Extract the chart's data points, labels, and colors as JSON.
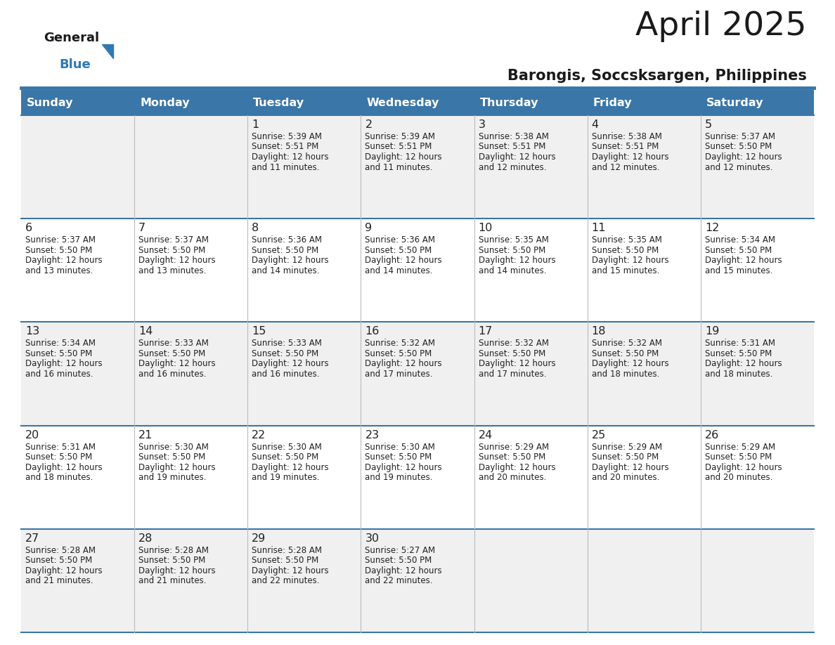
{
  "title": "April 2025",
  "subtitle": "Barongis, Soccsksargen, Philippines",
  "days_of_week": [
    "Sunday",
    "Monday",
    "Tuesday",
    "Wednesday",
    "Thursday",
    "Friday",
    "Saturday"
  ],
  "header_bg": "#3a76a8",
  "header_text": "#ffffff",
  "cell_bg_light": "#f0f0f0",
  "cell_bg_white": "#ffffff",
  "divider_color": "#3a76a8",
  "text_color": "#222222",
  "calendar_data": [
    [
      null,
      null,
      {
        "day": 1,
        "sunrise": "5:39 AM",
        "sunset": "5:51 PM",
        "daylight": "12 hours and 11 minutes."
      },
      {
        "day": 2,
        "sunrise": "5:39 AM",
        "sunset": "5:51 PM",
        "daylight": "12 hours and 11 minutes."
      },
      {
        "day": 3,
        "sunrise": "5:38 AM",
        "sunset": "5:51 PM",
        "daylight": "12 hours and 12 minutes."
      },
      {
        "day": 4,
        "sunrise": "5:38 AM",
        "sunset": "5:51 PM",
        "daylight": "12 hours and 12 minutes."
      },
      {
        "day": 5,
        "sunrise": "5:37 AM",
        "sunset": "5:50 PM",
        "daylight": "12 hours and 12 minutes."
      }
    ],
    [
      {
        "day": 6,
        "sunrise": "5:37 AM",
        "sunset": "5:50 PM",
        "daylight": "12 hours and 13 minutes."
      },
      {
        "day": 7,
        "sunrise": "5:37 AM",
        "sunset": "5:50 PM",
        "daylight": "12 hours and 13 minutes."
      },
      {
        "day": 8,
        "sunrise": "5:36 AM",
        "sunset": "5:50 PM",
        "daylight": "12 hours and 14 minutes."
      },
      {
        "day": 9,
        "sunrise": "5:36 AM",
        "sunset": "5:50 PM",
        "daylight": "12 hours and 14 minutes."
      },
      {
        "day": 10,
        "sunrise": "5:35 AM",
        "sunset": "5:50 PM",
        "daylight": "12 hours and 14 minutes."
      },
      {
        "day": 11,
        "sunrise": "5:35 AM",
        "sunset": "5:50 PM",
        "daylight": "12 hours and 15 minutes."
      },
      {
        "day": 12,
        "sunrise": "5:34 AM",
        "sunset": "5:50 PM",
        "daylight": "12 hours and 15 minutes."
      }
    ],
    [
      {
        "day": 13,
        "sunrise": "5:34 AM",
        "sunset": "5:50 PM",
        "daylight": "12 hours and 16 minutes."
      },
      {
        "day": 14,
        "sunrise": "5:33 AM",
        "sunset": "5:50 PM",
        "daylight": "12 hours and 16 minutes."
      },
      {
        "day": 15,
        "sunrise": "5:33 AM",
        "sunset": "5:50 PM",
        "daylight": "12 hours and 16 minutes."
      },
      {
        "day": 16,
        "sunrise": "5:32 AM",
        "sunset": "5:50 PM",
        "daylight": "12 hours and 17 minutes."
      },
      {
        "day": 17,
        "sunrise": "5:32 AM",
        "sunset": "5:50 PM",
        "daylight": "12 hours and 17 minutes."
      },
      {
        "day": 18,
        "sunrise": "5:32 AM",
        "sunset": "5:50 PM",
        "daylight": "12 hours and 18 minutes."
      },
      {
        "day": 19,
        "sunrise": "5:31 AM",
        "sunset": "5:50 PM",
        "daylight": "12 hours and 18 minutes."
      }
    ],
    [
      {
        "day": 20,
        "sunrise": "5:31 AM",
        "sunset": "5:50 PM",
        "daylight": "12 hours and 18 minutes."
      },
      {
        "day": 21,
        "sunrise": "5:30 AM",
        "sunset": "5:50 PM",
        "daylight": "12 hours and 19 minutes."
      },
      {
        "day": 22,
        "sunrise": "5:30 AM",
        "sunset": "5:50 PM",
        "daylight": "12 hours and 19 minutes."
      },
      {
        "day": 23,
        "sunrise": "5:30 AM",
        "sunset": "5:50 PM",
        "daylight": "12 hours and 19 minutes."
      },
      {
        "day": 24,
        "sunrise": "5:29 AM",
        "sunset": "5:50 PM",
        "daylight": "12 hours and 20 minutes."
      },
      {
        "day": 25,
        "sunrise": "5:29 AM",
        "sunset": "5:50 PM",
        "daylight": "12 hours and 20 minutes."
      },
      {
        "day": 26,
        "sunrise": "5:29 AM",
        "sunset": "5:50 PM",
        "daylight": "12 hours and 20 minutes."
      }
    ],
    [
      {
        "day": 27,
        "sunrise": "5:28 AM",
        "sunset": "5:50 PM",
        "daylight": "12 hours and 21 minutes."
      },
      {
        "day": 28,
        "sunrise": "5:28 AM",
        "sunset": "5:50 PM",
        "daylight": "12 hours and 21 minutes."
      },
      {
        "day": 29,
        "sunrise": "5:28 AM",
        "sunset": "5:50 PM",
        "daylight": "12 hours and 22 minutes."
      },
      {
        "day": 30,
        "sunrise": "5:27 AM",
        "sunset": "5:50 PM",
        "daylight": "12 hours and 22 minutes."
      },
      null,
      null,
      null
    ]
  ]
}
